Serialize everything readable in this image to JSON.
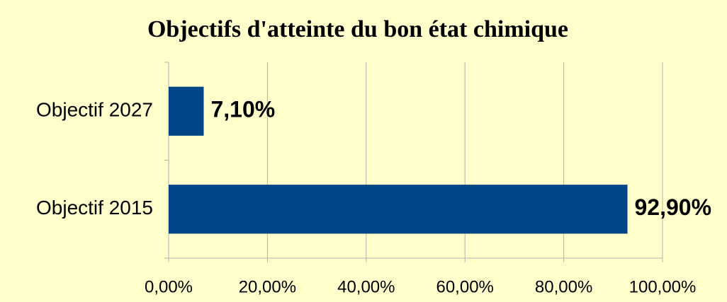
{
  "chart_data": {
    "type": "barh",
    "title": "Objectifs d'atteinte du bon état chimique",
    "categories": [
      "Objectif 2027",
      "Objectif 2015"
    ],
    "values": [
      7.1,
      92.9
    ],
    "value_labels": [
      "7,10%",
      "92,90%"
    ],
    "color": "#004586",
    "xlim": [
      0,
      100
    ],
    "xticks": [
      {
        "value": 0,
        "label": "0,00%"
      },
      {
        "value": 20,
        "label": "20,00%"
      },
      {
        "value": 40,
        "label": "40,00%"
      },
      {
        "value": 60,
        "label": "60,00%"
      },
      {
        "value": 80,
        "label": "80,00%"
      },
      {
        "value": 100,
        "label": "100,00%"
      }
    ],
    "grid": true
  }
}
